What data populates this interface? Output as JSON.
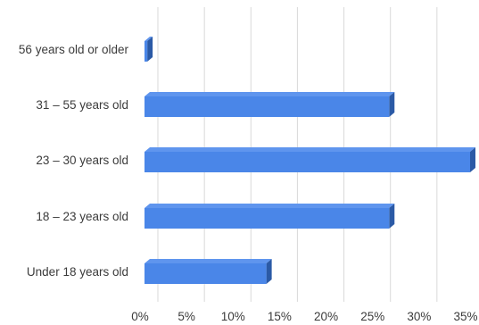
{
  "chart_data": {
    "type": "bar",
    "orientation": "horizontal",
    "style": "3d",
    "categories": [
      "56 years old or older",
      "31 – 55 years old",
      "23 – 30 years old",
      "18 – 23 years old",
      "Under 18 years old"
    ],
    "values": [
      0.3,
      26.3,
      35.0,
      26.3,
      13.1
    ],
    "xlim": [
      0,
      35
    ],
    "x_ticks": [
      "0%",
      "5%",
      "10%",
      "15%",
      "20%",
      "25%",
      "30%",
      "35%"
    ],
    "tick_values": [
      0,
      5,
      10,
      15,
      20,
      25,
      30,
      35
    ],
    "grid": true,
    "colors": {
      "bar_front": "#4a86e8",
      "bar_top": "#5f95ee",
      "bar_side": "#2b5aa6",
      "grid": "#d9d9d9",
      "text": "#3b3b3b"
    }
  }
}
